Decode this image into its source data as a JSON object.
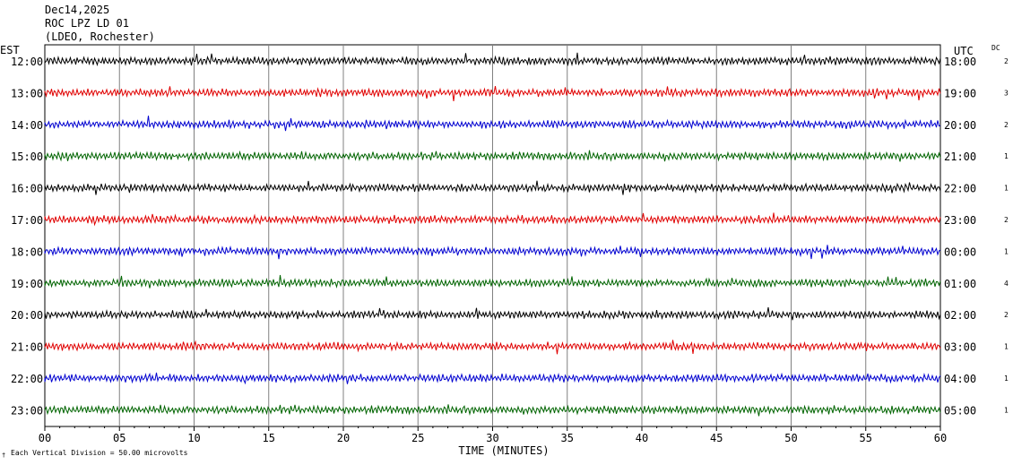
{
  "header": {
    "date": "Dec14,2025",
    "station": "ROC LPZ LD 01",
    "network": "(LDEO, Rochester)"
  },
  "chart_data": {
    "type": "line",
    "title": "",
    "xlabel": "TIME (MINUTES)",
    "x_ticks": [
      "00",
      "05",
      "10",
      "15",
      "20",
      "25",
      "30",
      "35",
      "40",
      "45",
      "50",
      "55",
      "60"
    ],
    "xlim": [
      0,
      60
    ],
    "left_axis_label": "EST",
    "right_axis_label": "UTC",
    "dc_label": "DC",
    "grid": true,
    "trace_colors": [
      "#000000",
      "#e00000",
      "#0000d0",
      "#006400"
    ],
    "rows": [
      {
        "est": "12:00",
        "utc": "18:00",
        "dc": "2"
      },
      {
        "est": "13:00",
        "utc": "19:00",
        "dc": "3"
      },
      {
        "est": "14:00",
        "utc": "20:00",
        "dc": "2"
      },
      {
        "est": "15:00",
        "utc": "21:00",
        "dc": "1"
      },
      {
        "est": "16:00",
        "utc": "22:00",
        "dc": "1"
      },
      {
        "est": "17:00",
        "utc": "23:00",
        "dc": "2"
      },
      {
        "est": "18:00",
        "utc": "00:00",
        "dc": "1"
      },
      {
        "est": "19:00",
        "utc": "01:00",
        "dc": "4"
      },
      {
        "est": "20:00",
        "utc": "02:00",
        "dc": "2"
      },
      {
        "est": "21:00",
        "utc": "03:00",
        "dc": "1"
      },
      {
        "est": "22:00",
        "utc": "04:00",
        "dc": "1"
      },
      {
        "est": "23:00",
        "utc": "05:00",
        "dc": "1"
      }
    ],
    "footnote": "Each Vertical Division =   50.00 microvolts"
  }
}
